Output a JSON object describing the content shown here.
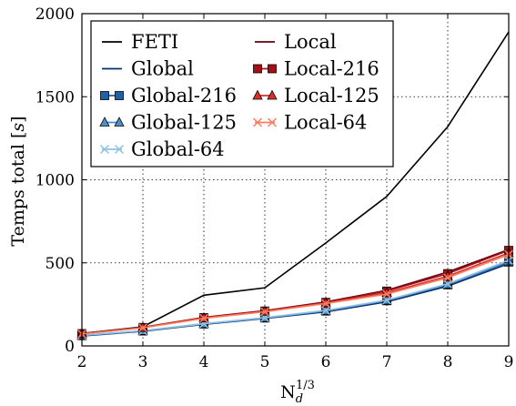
{
  "chart_data": {
    "type": "line",
    "x": [
      2,
      3,
      4,
      5,
      6,
      7,
      8,
      9
    ],
    "xlim": [
      2,
      9
    ],
    "ylim": [
      0,
      2000
    ],
    "xticks": [
      2,
      3,
      4,
      5,
      6,
      7,
      8,
      9
    ],
    "yticks": [
      0,
      500,
      1000,
      1500,
      2000
    ],
    "xlabel_base": "N",
    "xlabel_sub": "d",
    "xlabel_sup": "1/3",
    "ylabel_text": "Temps total ",
    "ylabel_unit": "s",
    "grid": true,
    "legend_position": "upper-left",
    "series": [
      {
        "name": "FETI",
        "color": "#000000",
        "marker": "none",
        "values": [
          75,
          115,
          305,
          350,
          620,
          900,
          1320,
          1890
        ]
      },
      {
        "name": "Global",
        "color": "#08306b",
        "marker": "none",
        "values": [
          60,
          88,
          130,
          165,
          205,
          265,
          360,
          495
        ]
      },
      {
        "name": "Global-216",
        "color": "#2060a8",
        "marker": "square",
        "values": [
          62,
          90,
          132,
          168,
          210,
          272,
          368,
          505
        ]
      },
      {
        "name": "Global-125",
        "color": "#4d8ec8",
        "marker": "triangle",
        "values": [
          63,
          91,
          133,
          169,
          212,
          274,
          371,
          510
        ]
      },
      {
        "name": "Global-64",
        "color": "#8fc0e4",
        "marker": "x",
        "values": [
          64,
          92,
          134,
          170,
          214,
          276,
          374,
          515
        ]
      },
      {
        "name": "Local",
        "color": "#67000d",
        "marker": "none",
        "values": [
          75,
          112,
          172,
          212,
          265,
          335,
          445,
          580
        ]
      },
      {
        "name": "Local-216",
        "color": "#a50f15",
        "marker": "square",
        "values": [
          74,
          111,
          170,
          210,
          262,
          330,
          435,
          575
        ]
      },
      {
        "name": "Local-125",
        "color": "#d6302a",
        "marker": "triangle",
        "values": [
          73,
          110,
          168,
          208,
          258,
          320,
          420,
          560
        ]
      },
      {
        "name": "Local-64",
        "color": "#fc7b5c",
        "marker": "x",
        "values": [
          72,
          109,
          166,
          206,
          255,
          312,
          410,
          550
        ]
      }
    ]
  }
}
